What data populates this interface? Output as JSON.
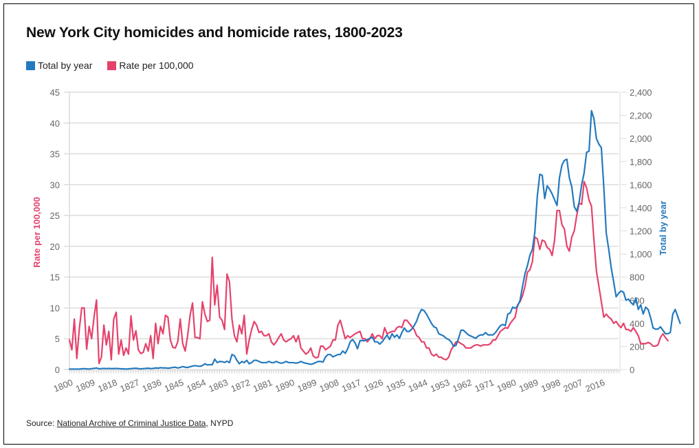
{
  "title": "New York City homicides and homicide rates, 1800-2023",
  "legend": [
    {
      "label": "Total by year",
      "color": "#2379be"
    },
    {
      "label": "Rate per 100,000",
      "color": "#e5426b"
    }
  ],
  "source": {
    "prefix": "Source: ",
    "link_text": "National Archive of Criminal Justice Data",
    "suffix": ", NYPD"
  },
  "chart_data": {
    "type": "line",
    "title": "New York City homicides and homicide rates, 1800-2023",
    "xlabel": "",
    "ylabel_left": "Rate per 100,000",
    "ylabel_right": "Total by year",
    "x_range": [
      1800,
      2023
    ],
    "ylim_left": [
      0,
      45
    ],
    "ylim_right": [
      0,
      2400
    ],
    "yticks_left": [
      "0",
      "5",
      "10",
      "15",
      "20",
      "25",
      "30",
      "35",
      "40",
      "45"
    ],
    "yticks_right": [
      "0",
      "200",
      "400",
      "600",
      "800",
      "1,000",
      "1,200",
      "1,400",
      "1,600",
      "1,800",
      "2,000",
      "2,200",
      "2,400"
    ],
    "xticks": [
      "1800",
      "1809",
      "1818",
      "1827",
      "1836",
      "1845",
      "1854",
      "1863",
      "1872",
      "1881",
      "1890",
      "1899",
      "1908",
      "1917",
      "1926",
      "1935",
      "1944",
      "1953",
      "1962",
      "1971",
      "1980",
      "1989",
      "1998",
      "2007",
      "2016"
    ],
    "grid": true,
    "legend_position": "top-left",
    "series": [
      {
        "name": "Rate per 100,000",
        "axis": "left",
        "color": "#e5426b",
        "start_year": 1800,
        "values": [
          4.8,
          3.2,
          8.2,
          1.8,
          6.5,
          10.0,
          10.0,
          3.3,
          7.0,
          5.0,
          8.5,
          11.3,
          1.0,
          2.0,
          7.2,
          4.0,
          6.2,
          1.6,
          8.2,
          9.3,
          2.5,
          4.8,
          2.3,
          3.5,
          2.5,
          8.7,
          4.8,
          6.3,
          3.2,
          2.6,
          2.8,
          4.2,
          3.0,
          5.5,
          1.8,
          7.5,
          4.2,
          7.0,
          5.8,
          8.8,
          8.5,
          4.8,
          3.6,
          3.5,
          4.5,
          8.2,
          4.2,
          3.0,
          5.5,
          8.8,
          10.8,
          5.2,
          5.2,
          5.0,
          11.0,
          9.0,
          7.8,
          8.0,
          18.2,
          10.5,
          13.7,
          8.5,
          8.0,
          6.5,
          15.5,
          14.2,
          8.2,
          5.5,
          4.5,
          7.2,
          5.8,
          8.8,
          2.5,
          4.8,
          6.5,
          7.8,
          7.2,
          6.0,
          6.2,
          5.5,
          5.5,
          5.8,
          4.5,
          4.0,
          4.5,
          5.2,
          5.8,
          4.8,
          4.5,
          4.8,
          5.0,
          5.5,
          4.5,
          5.5,
          3.5,
          3.0,
          2.5,
          2.8,
          3.5,
          2.2,
          1.9,
          2.0,
          3.8,
          3.8,
          3.2,
          3.5,
          3.8,
          4.8,
          4.8,
          7.2,
          8.0,
          6.5,
          5.0,
          5.5,
          5.2,
          5.5,
          5.8,
          6.0,
          6.2,
          5.0,
          5.0,
          4.5,
          5.0,
          5.8,
          5.0,
          5.5,
          5.5,
          5.0,
          6.8,
          5.8,
          6.0,
          6.2,
          6.2,
          6.8,
          7.0,
          6.8,
          8.0,
          8.0,
          7.5,
          7.0,
          6.5,
          5.5,
          5.2,
          4.5,
          4.5,
          3.5,
          3.5,
          2.5,
          2.2,
          2.5,
          2.0,
          2.0,
          1.7,
          1.6,
          2.0,
          3.2,
          3.8,
          4.5,
          4.5,
          4.2,
          4.0,
          3.5,
          3.5,
          3.5,
          3.8,
          4.0,
          4.0,
          3.8,
          4.0,
          4.0,
          4.0,
          4.2,
          4.8,
          4.8,
          5.5,
          6.2,
          6.5,
          6.8,
          6.7,
          7.5,
          8.0,
          8.5,
          10.5,
          11.0,
          12.0,
          13.5,
          15.8,
          16.2,
          17.5,
          21.5,
          21.2,
          19.5,
          21.0,
          20.8,
          19.8,
          19.5,
          18.5,
          21.0,
          25.8,
          25.8,
          23.5,
          22.8,
          20.0,
          19.2,
          21.5,
          22.5,
          25.0,
          27.0,
          26.8,
          30.5,
          29.5,
          27.5,
          26.5,
          21.0,
          16.0,
          13.5,
          11.0,
          8.5,
          9.0,
          8.5,
          8.2,
          7.5,
          7.8,
          7.2,
          6.8,
          7.5,
          6.5,
          6.5,
          6.2,
          6.8,
          6.2,
          5.5,
          4.2,
          4.2,
          4.2,
          4.4,
          4.2,
          3.8,
          3.8,
          4.0,
          5.2,
          5.8,
          5.2,
          4.7
        ]
      },
      {
        "name": "Total by year",
        "axis": "right",
        "color": "#2379be",
        "start_year": 1800,
        "values": [
          4,
          4,
          4,
          4,
          4,
          6,
          8,
          6,
          4,
          8,
          10,
          14,
          6,
          8,
          10,
          8,
          10,
          8,
          8,
          10,
          8,
          6,
          6,
          4,
          6,
          8,
          10,
          12,
          8,
          6,
          8,
          10,
          12,
          8,
          10,
          14,
          12,
          16,
          14,
          14,
          12,
          14,
          18,
          20,
          14,
          18,
          26,
          20,
          18,
          24,
          30,
          34,
          30,
          28,
          34,
          50,
          40,
          42,
          42,
          90,
          60,
          70,
          68,
          62,
          72,
          60,
          130,
          120,
          80,
          50,
          70,
          60,
          80,
          50,
          60,
          80,
          80,
          70,
          60,
          60,
          60,
          70,
          60,
          60,
          70,
          60,
          55,
          60,
          70,
          60,
          60,
          60,
          55,
          60,
          70,
          60,
          55,
          50,
          45,
          50,
          60,
          70,
          70,
          65,
          110,
          130,
          130,
          110,
          120,
          130,
          130,
          160,
          140,
          180,
          240,
          260,
          230,
          180,
          250,
          250,
          250,
          260,
          270,
          280,
          240,
          240,
          220,
          240,
          270,
          300,
          260,
          310,
          280,
          300,
          270,
          320,
          360,
          330,
          330,
          350,
          380,
          420,
          480,
          520,
          510,
          480,
          440,
          400,
          370,
          360,
          310,
          300,
          290,
          270,
          260,
          240,
          200,
          210,
          270,
          340,
          340,
          320,
          300,
          290,
          280,
          270,
          290,
          300,
          300,
          320,
          300,
          300,
          300,
          320,
          350,
          380,
          390,
          380,
          480,
          490,
          540,
          530,
          550,
          600,
          720,
          830,
          900,
          990,
          1040,
          1190,
          1500,
          1690,
          1680,
          1480,
          1590,
          1560,
          1520,
          1470,
          1420,
          1660,
          1770,
          1810,
          1820,
          1660,
          1580,
          1410,
          1370,
          1450,
          1600,
          1700,
          1880,
          1890,
          2240,
          2170,
          2000,
          1950,
          1920,
          1580,
          1180,
          1040,
          880,
          760,
          630,
          660,
          680,
          670,
          600,
          610,
          580,
          560,
          620,
          520,
          560,
          480,
          540,
          520,
          450,
          360,
          350,
          350,
          370,
          340,
          310,
          310,
          320,
          480,
          520,
          460,
          400
        ]
      }
    ]
  }
}
